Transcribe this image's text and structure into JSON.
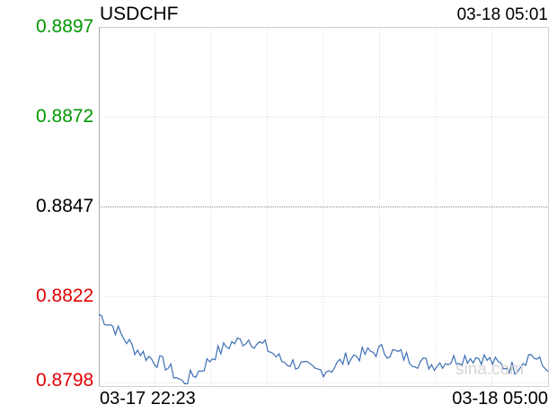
{
  "header": {
    "symbol": "USDCHF",
    "timestamp": "03-18 05:01"
  },
  "watermark": "sina.com",
  "colors": {
    "up": "#009900",
    "down": "#e00000",
    "neutral": "#000000",
    "line": "#3d6fb5",
    "grid": "#d8d8d8"
  },
  "chart_data": {
    "type": "line",
    "title": "USDCHF",
    "xlabel": "",
    "ylabel": "",
    "reference_price": 0.8847,
    "ylim": [
      0.8797,
      0.8897
    ],
    "y_ticks": [
      {
        "label": "0.8897",
        "value": 0.8897,
        "trend": "up"
      },
      {
        "label": "0.8872",
        "value": 0.8872,
        "trend": "up"
      },
      {
        "label": "0.8847",
        "value": 0.8847,
        "trend": "neutral"
      },
      {
        "label": "0.8822",
        "value": 0.8822,
        "trend": "down"
      },
      {
        "label": "0.8798",
        "value": 0.8798,
        "trend": "down"
      }
    ],
    "x_tick_labels": [
      "03-17 22:23",
      "03-18 05:00"
    ],
    "x": [
      "22:23",
      "22:30",
      "22:45",
      "23:00",
      "23:15",
      "23:30",
      "23:45",
      "00:00",
      "00:15",
      "00:30",
      "00:45",
      "01:00",
      "01:15",
      "01:30",
      "01:45",
      "02:00",
      "02:15",
      "02:30",
      "02:45",
      "03:00",
      "03:15",
      "03:30",
      "03:45",
      "04:00",
      "04:15",
      "04:30",
      "04:45",
      "05:00"
    ],
    "series": [
      {
        "values": [
          0.8817,
          0.8813,
          0.8808,
          0.8805,
          0.8803,
          0.8798,
          0.8801,
          0.8806,
          0.8809,
          0.881,
          0.8808,
          0.8804,
          0.8803,
          0.8801,
          0.8802,
          0.8805,
          0.8806,
          0.8807,
          0.8806,
          0.8804,
          0.8803,
          0.8804,
          0.8805,
          0.8805,
          0.8803,
          0.8802,
          0.8806,
          0.8801
        ]
      }
    ],
    "grid": true,
    "legend": "none"
  }
}
